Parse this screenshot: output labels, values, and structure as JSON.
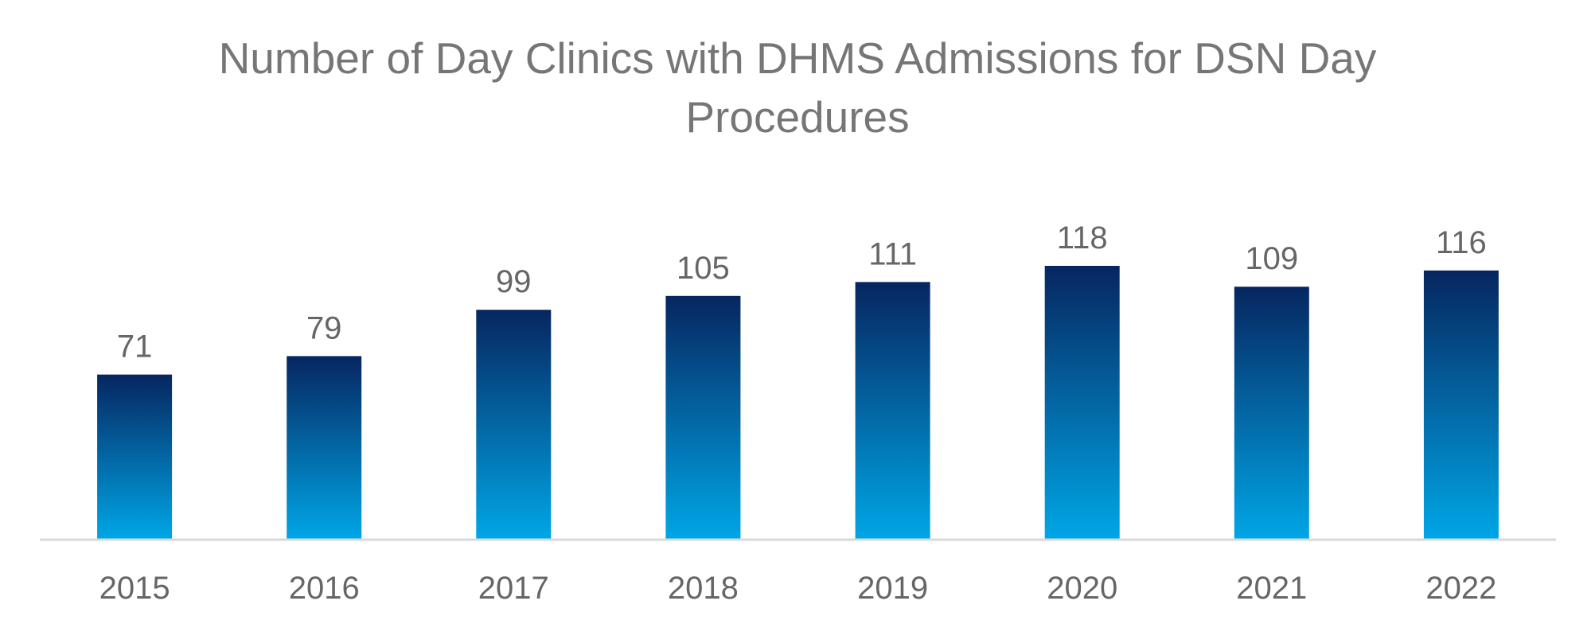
{
  "chart_data": {
    "type": "bar",
    "title": "Number of Day Clinics with DHMS Admissions for DSN Day Procedures",
    "categories": [
      "2015",
      "2016",
      "2017",
      "2018",
      "2019",
      "2020",
      "2021",
      "2022"
    ],
    "values": [
      71,
      79,
      99,
      105,
      111,
      118,
      109,
      116
    ],
    "xlabel": "",
    "ylabel": "",
    "ylim": [
      0,
      118
    ],
    "grid": false,
    "legend": "none",
    "data_labels": true,
    "colors": {
      "bar_top": "#062660",
      "bar_bottom": "#00A6E6",
      "axis": "#D9D9D9",
      "text": "#767676"
    }
  }
}
